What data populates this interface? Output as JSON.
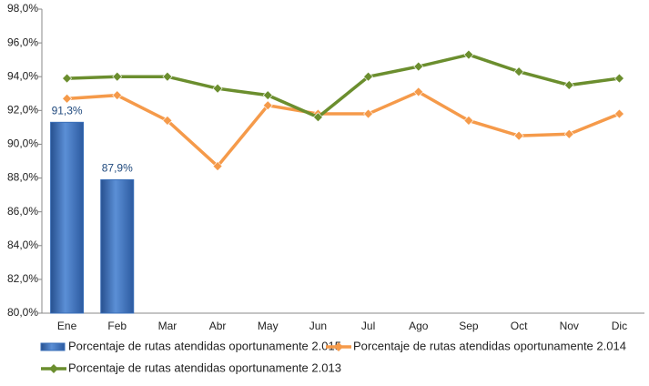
{
  "chart_data": {
    "type": "combo",
    "categories": [
      "Ene",
      "Feb",
      "Mar",
      "Abr",
      "May",
      "Jun",
      "Jul",
      "Ago",
      "Sep",
      "Oct",
      "Nov",
      "Dic"
    ],
    "ylim": [
      80,
      98
    ],
    "yticks": [
      {
        "value": 80,
        "label": "80,0%"
      },
      {
        "value": 82,
        "label": "82,0%"
      },
      {
        "value": 84,
        "label": "84,0%"
      },
      {
        "value": 86,
        "label": "86,0%"
      },
      {
        "value": 88,
        "label": "88,0%"
      },
      {
        "value": 90,
        "label": "90,0%"
      },
      {
        "value": 92,
        "label": "92,0%"
      },
      {
        "value": 94,
        "label": "94,0%"
      },
      {
        "value": 96,
        "label": "96,0%"
      },
      {
        "value": 98,
        "label": "98,0%"
      }
    ],
    "grid": false,
    "series": [
      {
        "name": "Porcentaje de rutas atendidas oportunamente 2.015",
        "type": "bar",
        "color": "#3a6fb8",
        "values": [
          91.3,
          87.9,
          null,
          null,
          null,
          null,
          null,
          null,
          null,
          null,
          null,
          null
        ],
        "value_labels": [
          "91,3%",
          "87,9%",
          null,
          null,
          null,
          null,
          null,
          null,
          null,
          null,
          null,
          null
        ]
      },
      {
        "name": "Porcentaje de rutas atendidas oportunamente 2.014",
        "type": "line",
        "color": "#f59a4a",
        "values": [
          92.7,
          92.9,
          91.4,
          88.7,
          92.3,
          91.8,
          91.8,
          93.1,
          91.4,
          90.5,
          90.6,
          91.8
        ]
      },
      {
        "name": "Porcentaje de rutas atendidas oportunamente 2.013",
        "type": "line",
        "color": "#6b8e2e",
        "values": [
          93.9,
          94.0,
          94.0,
          93.3,
          92.9,
          91.6,
          94.0,
          94.6,
          95.3,
          94.3,
          93.5,
          93.9
        ]
      }
    ]
  }
}
